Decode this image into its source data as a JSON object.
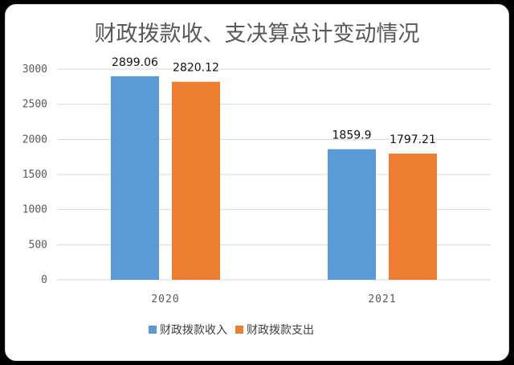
{
  "chart_data": {
    "type": "bar",
    "title": "财政拨款收、支决算总计变动情况",
    "categories": [
      "2020",
      "2021"
    ],
    "series": [
      {
        "name": "财政拨款收入",
        "values": [
          2899.06,
          1859.9
        ],
        "labels": [
          "2899.06",
          "1859.9"
        ],
        "color": "#5b9bd5"
      },
      {
        "name": "财政拨款支出",
        "values": [
          2820.12,
          1797.21
        ],
        "labels": [
          "2820.12",
          "1797.21"
        ],
        "color": "#ed7d31"
      }
    ],
    "yticks": [
      "0",
      "500",
      "1000",
      "1500",
      "2000",
      "2500",
      "3000"
    ],
    "ylim": [
      0,
      3000
    ],
    "grid": true,
    "legend_position": "bottom"
  }
}
